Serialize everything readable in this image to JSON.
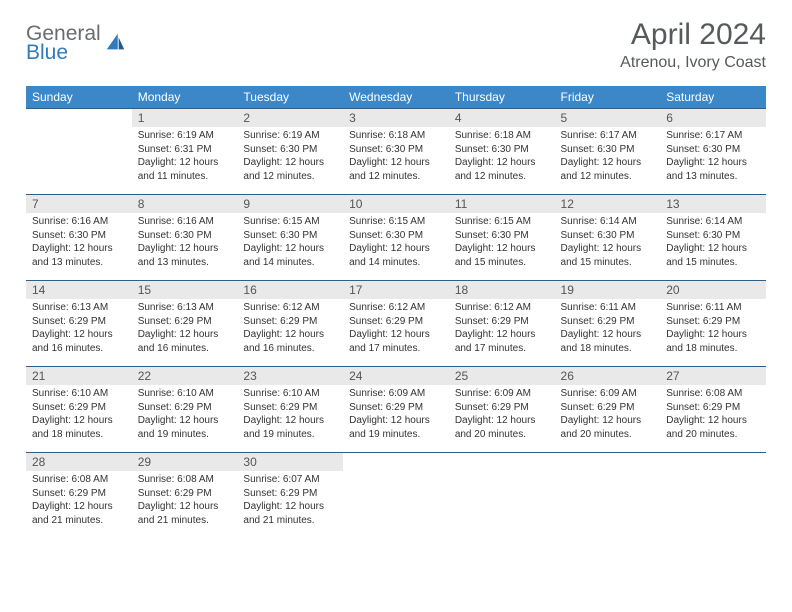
{
  "brand": {
    "word1": "General",
    "word2": "Blue"
  },
  "title": "April 2024",
  "location": "Atrenou, Ivory Coast",
  "colors": {
    "header_bg": "#3b87c8",
    "header_text": "#ffffff",
    "daynum_bg": "#e9e9e9",
    "rule": "#2f5e86",
    "title_color": "#565a5d",
    "logo_gray": "#6a6c6f",
    "logo_blue": "#2f7bbf"
  },
  "weekdays": [
    "Sunday",
    "Monday",
    "Tuesday",
    "Wednesday",
    "Thursday",
    "Friday",
    "Saturday"
  ],
  "weeks": [
    [
      {
        "blank": true
      },
      {
        "n": "1",
        "sr": "6:19 AM",
        "ss": "6:31 PM",
        "dl": "12 hours and 11 minutes."
      },
      {
        "n": "2",
        "sr": "6:19 AM",
        "ss": "6:30 PM",
        "dl": "12 hours and 12 minutes."
      },
      {
        "n": "3",
        "sr": "6:18 AM",
        "ss": "6:30 PM",
        "dl": "12 hours and 12 minutes."
      },
      {
        "n": "4",
        "sr": "6:18 AM",
        "ss": "6:30 PM",
        "dl": "12 hours and 12 minutes."
      },
      {
        "n": "5",
        "sr": "6:17 AM",
        "ss": "6:30 PM",
        "dl": "12 hours and 12 minutes."
      },
      {
        "n": "6",
        "sr": "6:17 AM",
        "ss": "6:30 PM",
        "dl": "12 hours and 13 minutes."
      }
    ],
    [
      {
        "n": "7",
        "sr": "6:16 AM",
        "ss": "6:30 PM",
        "dl": "12 hours and 13 minutes."
      },
      {
        "n": "8",
        "sr": "6:16 AM",
        "ss": "6:30 PM",
        "dl": "12 hours and 13 minutes."
      },
      {
        "n": "9",
        "sr": "6:15 AM",
        "ss": "6:30 PM",
        "dl": "12 hours and 14 minutes."
      },
      {
        "n": "10",
        "sr": "6:15 AM",
        "ss": "6:30 PM",
        "dl": "12 hours and 14 minutes."
      },
      {
        "n": "11",
        "sr": "6:15 AM",
        "ss": "6:30 PM",
        "dl": "12 hours and 15 minutes."
      },
      {
        "n": "12",
        "sr": "6:14 AM",
        "ss": "6:30 PM",
        "dl": "12 hours and 15 minutes."
      },
      {
        "n": "13",
        "sr": "6:14 AM",
        "ss": "6:30 PM",
        "dl": "12 hours and 15 minutes."
      }
    ],
    [
      {
        "n": "14",
        "sr": "6:13 AM",
        "ss": "6:29 PM",
        "dl": "12 hours and 16 minutes."
      },
      {
        "n": "15",
        "sr": "6:13 AM",
        "ss": "6:29 PM",
        "dl": "12 hours and 16 minutes."
      },
      {
        "n": "16",
        "sr": "6:12 AM",
        "ss": "6:29 PM",
        "dl": "12 hours and 16 minutes."
      },
      {
        "n": "17",
        "sr": "6:12 AM",
        "ss": "6:29 PM",
        "dl": "12 hours and 17 minutes."
      },
      {
        "n": "18",
        "sr": "6:12 AM",
        "ss": "6:29 PM",
        "dl": "12 hours and 17 minutes."
      },
      {
        "n": "19",
        "sr": "6:11 AM",
        "ss": "6:29 PM",
        "dl": "12 hours and 18 minutes."
      },
      {
        "n": "20",
        "sr": "6:11 AM",
        "ss": "6:29 PM",
        "dl": "12 hours and 18 minutes."
      }
    ],
    [
      {
        "n": "21",
        "sr": "6:10 AM",
        "ss": "6:29 PM",
        "dl": "12 hours and 18 minutes."
      },
      {
        "n": "22",
        "sr": "6:10 AM",
        "ss": "6:29 PM",
        "dl": "12 hours and 19 minutes."
      },
      {
        "n": "23",
        "sr": "6:10 AM",
        "ss": "6:29 PM",
        "dl": "12 hours and 19 minutes."
      },
      {
        "n": "24",
        "sr": "6:09 AM",
        "ss": "6:29 PM",
        "dl": "12 hours and 19 minutes."
      },
      {
        "n": "25",
        "sr": "6:09 AM",
        "ss": "6:29 PM",
        "dl": "12 hours and 20 minutes."
      },
      {
        "n": "26",
        "sr": "6:09 AM",
        "ss": "6:29 PM",
        "dl": "12 hours and 20 minutes."
      },
      {
        "n": "27",
        "sr": "6:08 AM",
        "ss": "6:29 PM",
        "dl": "12 hours and 20 minutes."
      }
    ],
    [
      {
        "n": "28",
        "sr": "6:08 AM",
        "ss": "6:29 PM",
        "dl": "12 hours and 21 minutes."
      },
      {
        "n": "29",
        "sr": "6:08 AM",
        "ss": "6:29 PM",
        "dl": "12 hours and 21 minutes."
      },
      {
        "n": "30",
        "sr": "6:07 AM",
        "ss": "6:29 PM",
        "dl": "12 hours and 21 minutes."
      },
      {
        "blank": true
      },
      {
        "blank": true
      },
      {
        "blank": true
      },
      {
        "blank": true
      }
    ]
  ],
  "labels": {
    "sunrise": "Sunrise:",
    "sunset": "Sunset:",
    "daylight": "Daylight:"
  }
}
